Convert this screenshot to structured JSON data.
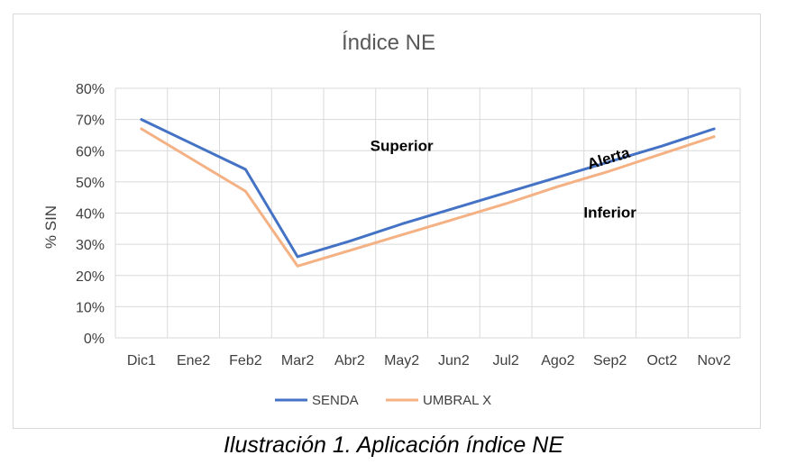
{
  "chart_data": {
    "type": "line",
    "title": "Índice NE",
    "xlabel": "",
    "ylabel": "% SIN",
    "categories": [
      "Dic1",
      "Ene2",
      "Feb2",
      "Mar2",
      "Abr2",
      "May2",
      "Jun2",
      "Jul2",
      "Ago2",
      "Sep2",
      "Oct2",
      "Nov2"
    ],
    "y_ticks": [
      "0%",
      "10%",
      "20%",
      "30%",
      "40%",
      "50%",
      "60%",
      "70%",
      "80%"
    ],
    "ylim": [
      0,
      80
    ],
    "grid": true,
    "legend_position": "bottom",
    "series": [
      {
        "name": "SENDA",
        "color": "#4472c4",
        "values": [
          70,
          62,
          54,
          26,
          31,
          36.5,
          41.5,
          46.5,
          51.5,
          56.5,
          61.5,
          67
        ]
      },
      {
        "name": "UMBRAL X",
        "color": "#f4b183",
        "values": [
          67,
          57,
          47,
          23,
          28,
          33,
          38,
          43,
          48.5,
          53.5,
          59,
          64.5
        ]
      }
    ],
    "annotations": [
      {
        "text": "Superior",
        "x": "May2",
        "y": 60
      },
      {
        "text": "Alerta",
        "x": "Sep2",
        "y": 56
      },
      {
        "text": "Inferior",
        "x": "Sep2",
        "y": 38.5
      }
    ]
  },
  "caption": "Ilustración 1. Aplicación índice NE"
}
